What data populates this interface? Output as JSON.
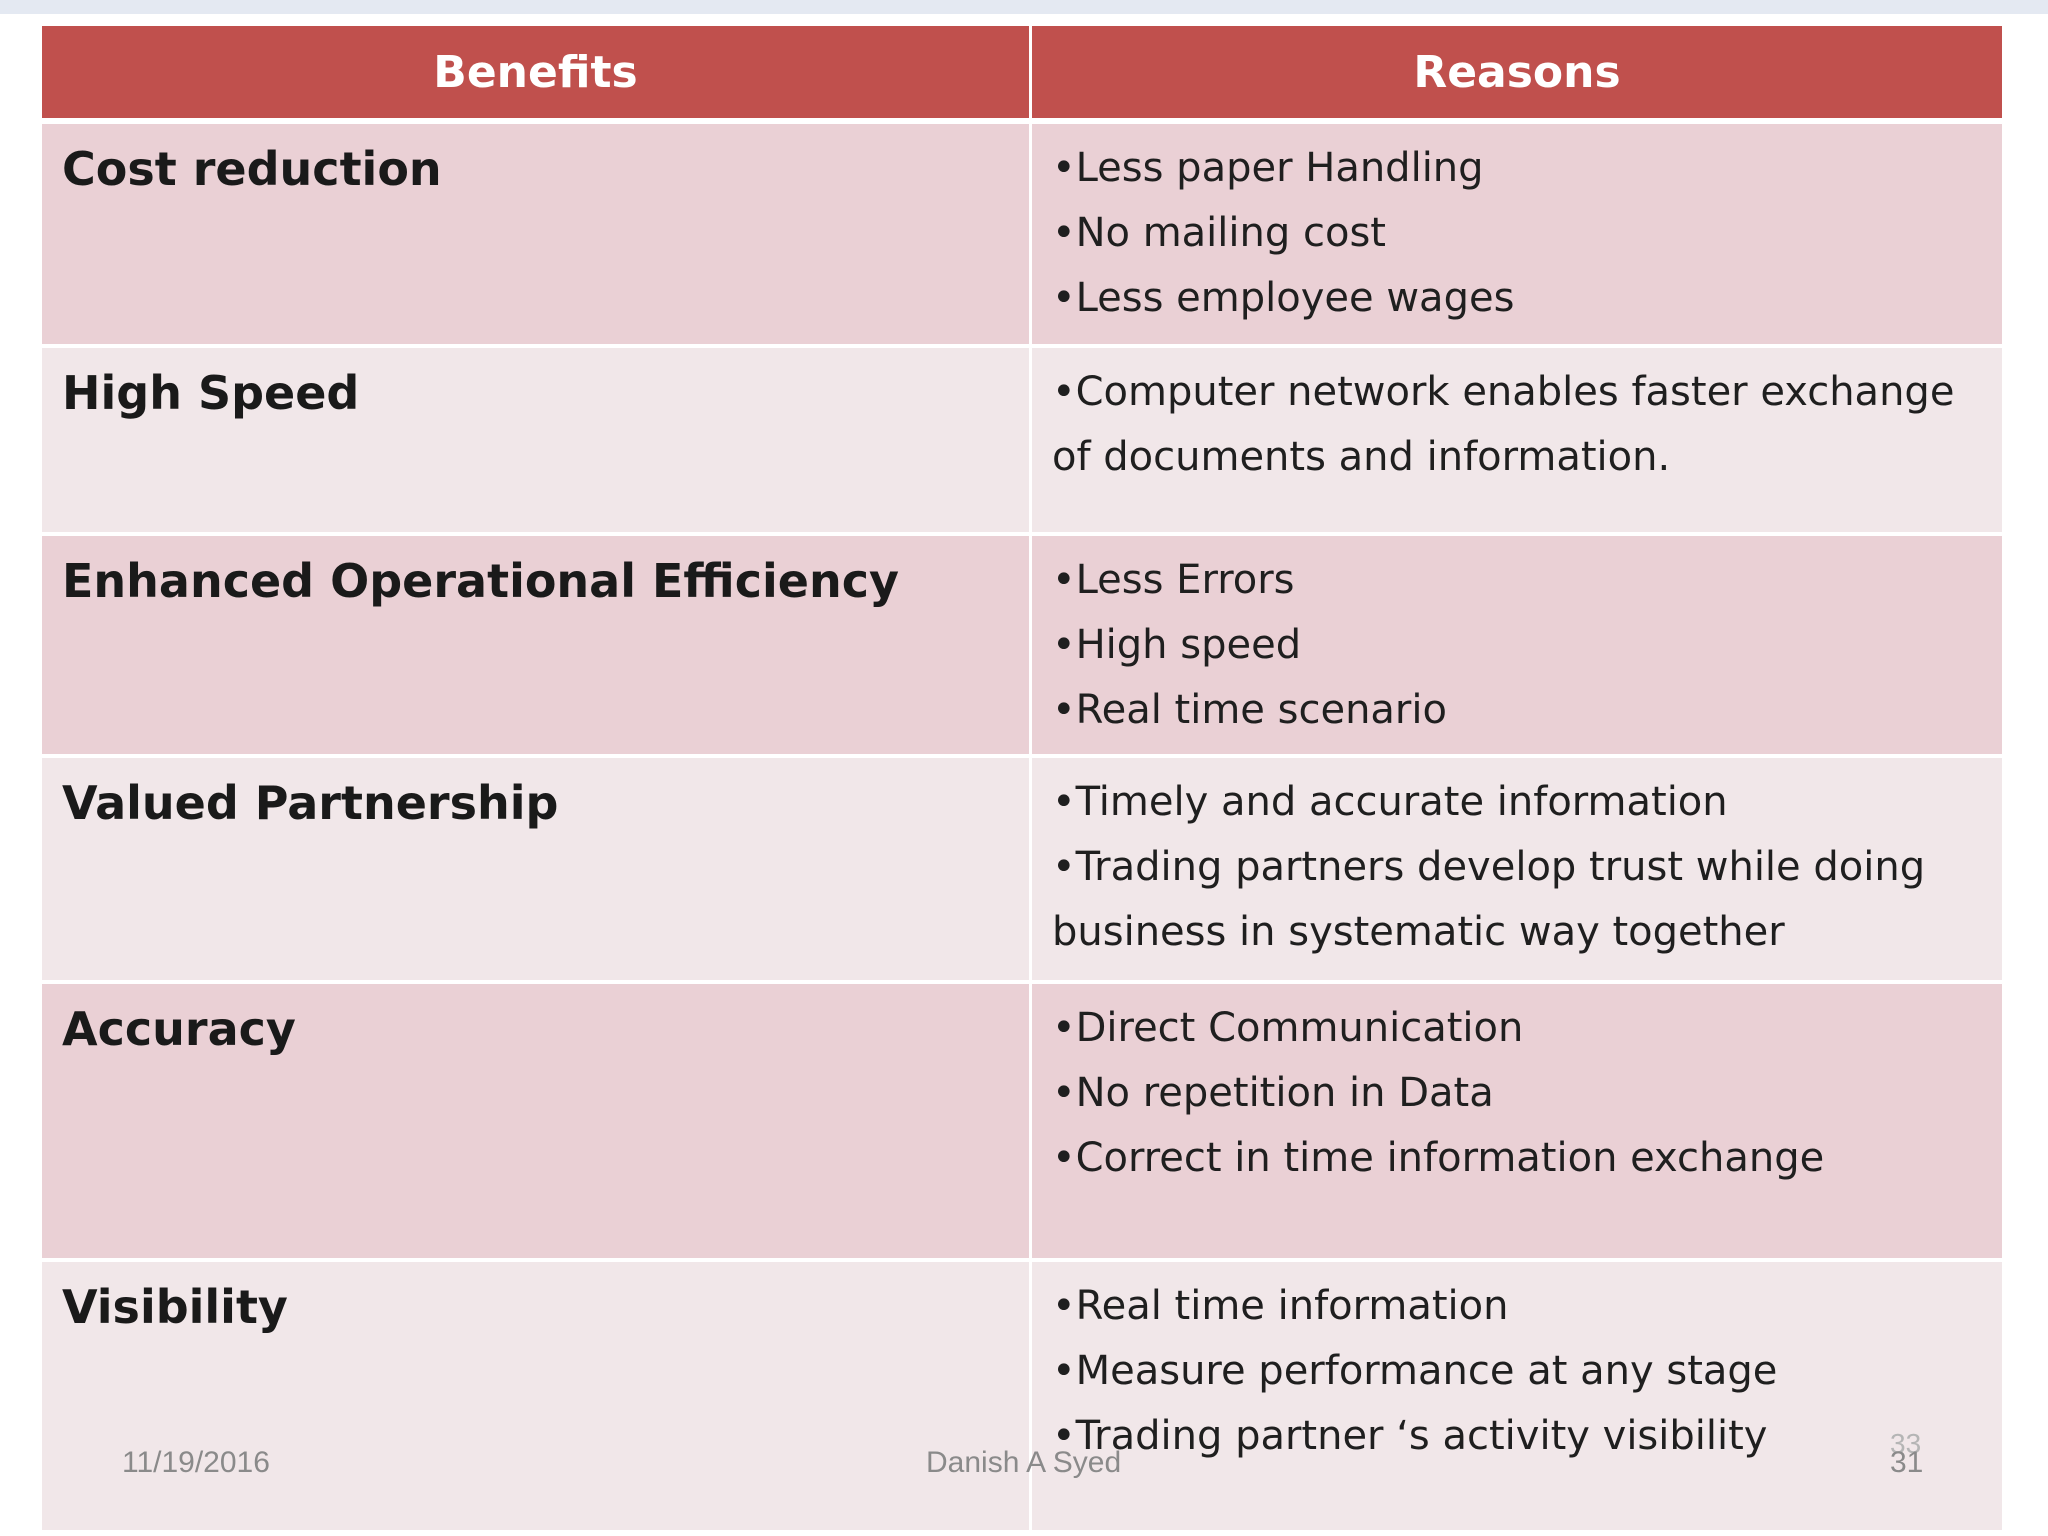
{
  "table": {
    "headers": {
      "benefits": "Benefits",
      "reasons": "Reasons"
    },
    "rows": [
      {
        "benefit": "Cost reduction",
        "reasons": [
          "•Less paper Handling",
          "•No mailing cost",
          "•Less employee wages"
        ]
      },
      {
        "benefit": "High Speed",
        "reasons": [
          "•Computer network enables faster exchange of documents and information."
        ]
      },
      {
        "benefit": "Enhanced Operational Efficiency",
        "reasons": [
          "•Less Errors",
          "•High speed",
          "•Real time scenario"
        ]
      },
      {
        "benefit": "Valued Partnership",
        "reasons": [
          "•Timely and accurate information",
          "•Trading partners develop trust while doing business in systematic way together"
        ]
      },
      {
        "benefit": "Accuracy",
        "reasons": [
          "•Direct Communication",
          "•No repetition in Data",
          "•Correct in time information exchange"
        ]
      },
      {
        "benefit": "Visibility",
        "reasons": [
          "•Real time information",
          "•Measure performance at any stage",
          "•Trading partner ‘s activity visibility"
        ]
      }
    ]
  },
  "footer": {
    "date": "11/19/2016",
    "author": "Danish A Syed",
    "page": "31",
    "ghost_page": "33"
  }
}
